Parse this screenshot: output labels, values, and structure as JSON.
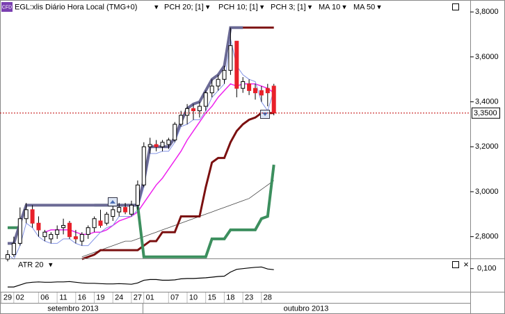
{
  "header": {
    "badge": "CFD",
    "title": "EGL:xlis Diário Hora Local (TMG+0)"
  },
  "x_axis": {
    "categories": [
      "29",
      null,
      "02",
      null,
      null,
      null,
      "06",
      null,
      null,
      "11",
      null,
      null,
      "16",
      null,
      null,
      "19",
      null,
      null,
      "24",
      null,
      null,
      "27",
      null,
      "01",
      null,
      null,
      null,
      "07",
      null,
      null,
      "10",
      null,
      null,
      "15",
      null,
      null,
      "18",
      null,
      null,
      "23",
      null,
      null,
      "28",
      null
    ],
    "months": [
      "setembro 2013",
      "outubro 2013"
    ]
  },
  "chart_data": [
    {
      "type": "candlestick",
      "open": [
        2.7,
        2.72,
        2.77,
        2.88,
        2.92,
        2.86,
        2.8,
        2.79,
        2.81,
        2.84,
        2.86,
        2.8,
        2.78,
        2.81,
        2.84,
        2.87,
        2.86,
        2.89,
        2.91,
        2.93,
        2.9,
        2.94,
        3.03,
        3.2,
        3.21,
        3.2,
        3.21,
        3.23,
        3.3,
        3.34,
        3.37,
        3.36,
        3.38,
        3.44,
        3.47,
        3.5,
        3.54,
        3.67,
        3.46,
        3.48,
        3.46,
        3.45,
        3.46,
        3.47
      ],
      "high": [
        2.74,
        2.8,
        2.93,
        2.95,
        2.94,
        2.89,
        2.83,
        2.82,
        2.85,
        2.88,
        2.87,
        2.83,
        2.82,
        2.85,
        2.89,
        2.92,
        2.91,
        2.94,
        2.95,
        2.95,
        2.96,
        3.05,
        3.22,
        3.24,
        3.23,
        3.23,
        3.24,
        3.31,
        3.36,
        3.39,
        3.39,
        3.4,
        3.45,
        3.5,
        3.52,
        3.56,
        3.73,
        3.67,
        3.51,
        3.5,
        3.48,
        3.47,
        3.48,
        3.48
      ],
      "low": [
        2.69,
        2.71,
        2.76,
        2.86,
        2.84,
        2.8,
        2.78,
        2.77,
        2.79,
        2.81,
        2.79,
        2.77,
        2.76,
        2.79,
        2.82,
        2.84,
        2.85,
        2.87,
        2.89,
        2.9,
        2.89,
        2.92,
        3.02,
        3.17,
        3.18,
        3.18,
        3.19,
        3.22,
        3.29,
        3.3,
        3.32,
        3.33,
        3.36,
        3.42,
        3.45,
        3.48,
        3.52,
        3.42,
        3.44,
        3.43,
        3.41,
        3.4,
        3.38,
        3.34
      ],
      "close": [
        2.72,
        2.77,
        2.88,
        2.92,
        2.86,
        2.83,
        2.82,
        2.81,
        2.83,
        2.85,
        2.8,
        2.79,
        2.81,
        2.84,
        2.88,
        2.85,
        2.9,
        2.92,
        2.93,
        2.91,
        2.94,
        3.03,
        3.2,
        3.21,
        3.2,
        3.22,
        3.23,
        3.3,
        3.34,
        3.37,
        3.36,
        3.38,
        3.44,
        3.47,
        3.5,
        3.54,
        3.65,
        3.46,
        3.49,
        3.45,
        3.44,
        3.43,
        3.44,
        3.35
      ],
      "up_color": "#ffffff",
      "down_color": "#e8202a",
      "overlays": [
        {
          "name": "PCH 20; [1]",
          "color": "#3c8f5e",
          "upper_color": "#6b6a95",
          "values": [
            2.84,
            2.84,
            2.84,
            null,
            null,
            null,
            null,
            null,
            null,
            null,
            null,
            null,
            null,
            null,
            2.94,
            2.94,
            2.94,
            2.94,
            2.94,
            2.94,
            2.94,
            2.94,
            2.71,
            2.71,
            2.71,
            2.71,
            2.71,
            2.71,
            2.71,
            2.71,
            2.71,
            2.71,
            2.71,
            2.79,
            2.79,
            2.79,
            2.83,
            2.83,
            2.83,
            2.83,
            2.83,
            2.88,
            2.89,
            3.12
          ],
          "upper": [
            2.77,
            2.77,
            2.86,
            2.94,
            2.94,
            2.94,
            2.94,
            2.94,
            2.94,
            2.94,
            2.94,
            2.94,
            2.94,
            2.94,
            2.94,
            2.94,
            2.94,
            2.94,
            2.94,
            2.94,
            2.94,
            2.94,
            3.05,
            3.2,
            3.2,
            3.2,
            3.2,
            3.24,
            3.31,
            3.37,
            3.39,
            3.4,
            3.45,
            3.5,
            3.52,
            3.56,
            3.73,
            3.73,
            3.73,
            null,
            null,
            null,
            null,
            null
          ]
        },
        {
          "name": "PCH 10; [1]",
          "color": "#7b1010",
          "values": [
            null,
            null,
            null,
            null,
            null,
            null,
            null,
            null,
            null,
            null,
            null,
            null,
            2.7,
            2.71,
            2.72,
            2.74,
            2.74,
            2.74,
            2.74,
            2.74,
            2.74,
            2.74,
            2.76,
            2.78,
            2.78,
            2.82,
            2.82,
            2.82,
            2.89,
            2.89,
            2.89,
            2.89,
            3.02,
            3.13,
            3.15,
            3.15,
            3.22,
            3.27,
            3.3,
            3.32,
            3.33,
            3.35,
            3.35,
            3.35
          ],
          "upper": [
            null,
            null,
            null,
            null,
            null,
            null,
            null,
            null,
            null,
            null,
            null,
            null,
            null,
            null,
            null,
            null,
            null,
            null,
            null,
            null,
            null,
            null,
            null,
            null,
            null,
            null,
            null,
            null,
            null,
            null,
            null,
            null,
            null,
            null,
            null,
            null,
            3.73,
            3.73,
            3.73,
            3.73,
            3.73,
            3.73,
            3.73,
            3.73
          ]
        },
        {
          "name": "PCH 3; [1]",
          "color": "#8393e6",
          "values": [
            2.72,
            2.7,
            2.76,
            2.86,
            2.84,
            2.8,
            2.78,
            2.77,
            2.77,
            2.79,
            2.79,
            2.77,
            2.76,
            2.76,
            2.79,
            2.82,
            2.84,
            2.85,
            2.89,
            2.89,
            2.89,
            2.92,
            3.02,
            3.17,
            3.17,
            3.18,
            3.18,
            3.22,
            3.29,
            3.3,
            3.32,
            3.32,
            3.36,
            3.42,
            3.45,
            3.48,
            3.68,
            3.56,
            3.52,
            3.5,
            3.49,
            3.4,
            3.36,
            3.45
          ]
        },
        {
          "name": "MA 10",
          "color": "#ee22ee",
          "values": [
            null,
            null,
            null,
            null,
            null,
            null,
            2.82,
            2.83,
            2.83,
            2.83,
            2.83,
            2.82,
            2.81,
            2.81,
            2.82,
            2.82,
            2.83,
            2.85,
            2.87,
            2.88,
            2.89,
            2.91,
            2.95,
            2.99,
            3.03,
            3.06,
            3.1,
            3.14,
            3.18,
            3.23,
            3.27,
            3.31,
            3.35,
            3.38,
            3.42,
            3.45,
            3.48,
            3.47,
            3.48,
            3.48,
            3.48,
            3.47,
            3.46,
            3.44
          ]
        },
        {
          "name": "MA 50",
          "color": "#444444",
          "values": [
            null,
            null,
            null,
            null,
            null,
            null,
            null,
            null,
            null,
            null,
            null,
            null,
            2.71,
            2.72,
            2.73,
            2.74,
            2.75,
            2.76,
            2.77,
            2.78,
            2.78,
            2.79,
            2.8,
            2.81,
            2.82,
            2.83,
            2.84,
            2.85,
            2.86,
            2.87,
            2.88,
            2.89,
            2.9,
            2.91,
            2.92,
            2.93,
            2.94,
            2.95,
            2.96,
            2.97,
            2.99,
            3.01,
            3.03,
            3.05
          ]
        }
      ],
      "ylim": [
        2.7,
        3.85
      ],
      "yticks": [
        {
          "value": 2.8,
          "label": "2,8000"
        },
        {
          "value": 3.0,
          "label": "3,0000"
        },
        {
          "value": 3.2,
          "label": "3,2000"
        },
        {
          "value": 3.4,
          "label": "3,4000"
        },
        {
          "value": 3.6,
          "label": "3,6000"
        },
        {
          "value": 3.8,
          "label": "3,8000"
        }
      ],
      "last": {
        "value": 3.35,
        "label": "3,3500"
      }
    },
    {
      "type": "line",
      "title": "ATR 20",
      "color": "#000000",
      "values": [
        0.046,
        0.046,
        0.052,
        0.058,
        0.06,
        0.061,
        0.06,
        0.06,
        0.061,
        0.061,
        0.062,
        0.06,
        0.058,
        0.057,
        0.057,
        0.056,
        0.055,
        0.055,
        0.056,
        0.055,
        0.054,
        0.058,
        0.066,
        0.068,
        0.068,
        0.066,
        0.066,
        0.067,
        0.07,
        0.071,
        0.071,
        0.072,
        0.073,
        0.075,
        0.077,
        0.078,
        0.09,
        0.098,
        0.1,
        0.102,
        0.104,
        0.105,
        0.099,
        0.097
      ],
      "ylim": [
        0.032,
        0.126
      ],
      "yticks": [
        {
          "value": 0.1,
          "label": "0,100"
        }
      ]
    }
  ]
}
